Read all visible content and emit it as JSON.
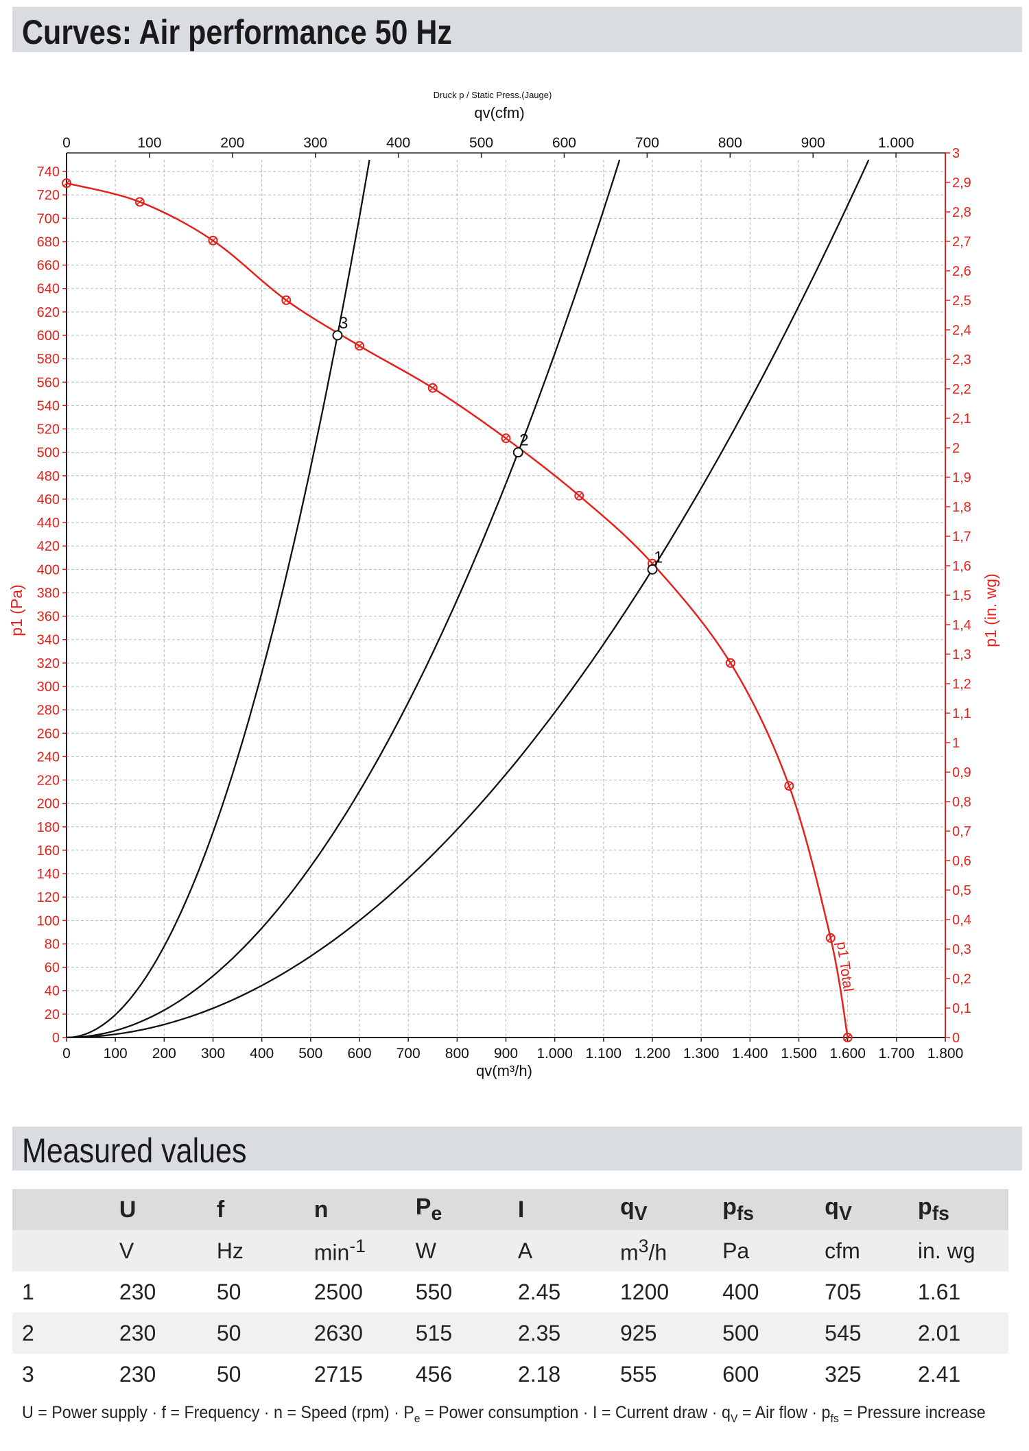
{
  "page": {
    "title": "Curves: Air performance 50 Hz",
    "measured_title": "Measured values"
  },
  "colors": {
    "red": "#e3221b",
    "black": "#111111",
    "grid": "#b9b9b9",
    "header_bg": "#d9dde1"
  },
  "chart_data": {
    "type": "line",
    "top_caption": "Druck p / Static Press.(Jauge)",
    "x_top_label": "qv(cfm)",
    "x_bottom_label": "qv(m³/h)",
    "y_left_label": "p1 (Pa)",
    "y_right_label": "p1 (in. wg)",
    "xlim": [
      0,
      1800
    ],
    "ylim": [
      0,
      750
    ],
    "x_ticks": [
      0,
      100,
      200,
      300,
      400,
      500,
      600,
      700,
      800,
      900,
      1000,
      1100,
      1200,
      1300,
      1400,
      1500,
      1600,
      1700,
      1800
    ],
    "x_tick_labels": [
      "0",
      "100",
      "200",
      "300",
      "400",
      "500",
      "600",
      "700",
      "800",
      "900",
      "1.000",
      "1.100",
      "1.200",
      "1.300",
      "1.400",
      "1.500",
      "1.600",
      "1.700",
      "1.800"
    ],
    "x_top_ticks_cfm": [
      0,
      100,
      200,
      300,
      400,
      500,
      600,
      700,
      800,
      900,
      1000
    ],
    "x_top_tick_labels": [
      "0",
      "100",
      "200",
      "300",
      "400",
      "500",
      "600",
      "700",
      "800",
      "900",
      "1.000"
    ],
    "y_left_tick_labels": [
      "0",
      "20",
      "40",
      "60",
      "80",
      "100",
      "120",
      "140",
      "160",
      "180",
      "200",
      "220",
      "240",
      "260",
      "280",
      "300",
      "320",
      "340",
      "360",
      "380",
      "400",
      "420",
      "440",
      "460",
      "480",
      "500",
      "520",
      "540",
      "560",
      "580",
      "600",
      "620",
      "640",
      "660",
      "680",
      "700",
      "720",
      "740"
    ],
    "y_right_tick_labels": [
      "0",
      "0,1",
      "0,2",
      "0,3",
      "0,4",
      "0,5",
      "0,6",
      "0,7",
      "0,8",
      "0,9",
      "1",
      "1,1",
      "1,2",
      "1,3",
      "1,4",
      "1,5",
      "1,6",
      "1,7",
      "1,8",
      "1,9",
      "2",
      "2,1",
      "2,2",
      "2,3",
      "2,4",
      "2,5",
      "2,6",
      "2,7",
      "2,8",
      "2,9",
      "3"
    ],
    "grid": true,
    "series": [
      {
        "name": "p1 Total",
        "color": "#e3221b",
        "markers": true,
        "points": [
          [
            0,
            730
          ],
          [
            150,
            714
          ],
          [
            300,
            681
          ],
          [
            450,
            630
          ],
          [
            600,
            591
          ],
          [
            750,
            555
          ],
          [
            900,
            512
          ],
          [
            1050,
            463
          ],
          [
            1200,
            405
          ],
          [
            1360,
            320
          ],
          [
            1480,
            215
          ],
          [
            1565,
            85
          ],
          [
            1600,
            0
          ]
        ]
      },
      {
        "color": "#111111",
        "points": [
          [
            0,
            0
          ],
          [
            555,
            600
          ],
          [
            610,
            720
          ]
        ]
      },
      {
        "color": "#111111",
        "points": [
          [
            0,
            0
          ],
          [
            925,
            500
          ],
          [
            1130,
            735
          ]
        ]
      },
      {
        "color": "#111111",
        "points": [
          [
            0,
            0
          ],
          [
            1200,
            400
          ],
          [
            1630,
            740
          ]
        ]
      }
    ],
    "operating_points": [
      {
        "label": "1",
        "x": 1200,
        "y": 400
      },
      {
        "label": "2",
        "x": 925,
        "y": 500
      },
      {
        "label": "3",
        "x": 555,
        "y": 600
      }
    ]
  },
  "table": {
    "headers": [
      "U",
      "f",
      "n",
      "P",
      "I",
      "q",
      "p",
      "q",
      "p"
    ],
    "header_subs": [
      "",
      "",
      "",
      "e",
      "",
      "V",
      "fs",
      "V",
      "fs"
    ],
    "units": [
      "V",
      "Hz",
      "min",
      "W",
      "A",
      "m",
      "Pa",
      "cfm",
      "in. wg"
    ],
    "unit_sups": [
      "",
      "",
      "-1",
      "",
      "",
      "3",
      "",
      "",
      ""
    ],
    "unit_tails": [
      "",
      "",
      "",
      "",
      "",
      "/h",
      "",
      "",
      ""
    ],
    "rows": [
      [
        "1",
        "230",
        "50",
        "2500",
        "550",
        "2.45",
        "1200",
        "400",
        "705",
        "1.61"
      ],
      [
        "2",
        "230",
        "50",
        "2630",
        "515",
        "2.35",
        "925",
        "500",
        "545",
        "2.01"
      ],
      [
        "3",
        "230",
        "50",
        "2715",
        "456",
        "2.18",
        "555",
        "600",
        "325",
        "2.41"
      ]
    ]
  },
  "footnote": {
    "part1": "U = Power supply · f = Frequency · n = Speed (rpm) · P",
    "sub1": "e",
    "part2": " = Power consumption · I = Current draw · q",
    "sub2": "V",
    "part3": " = Air flow · p",
    "sub3": "fs",
    "part4": " = Pressure increase"
  }
}
